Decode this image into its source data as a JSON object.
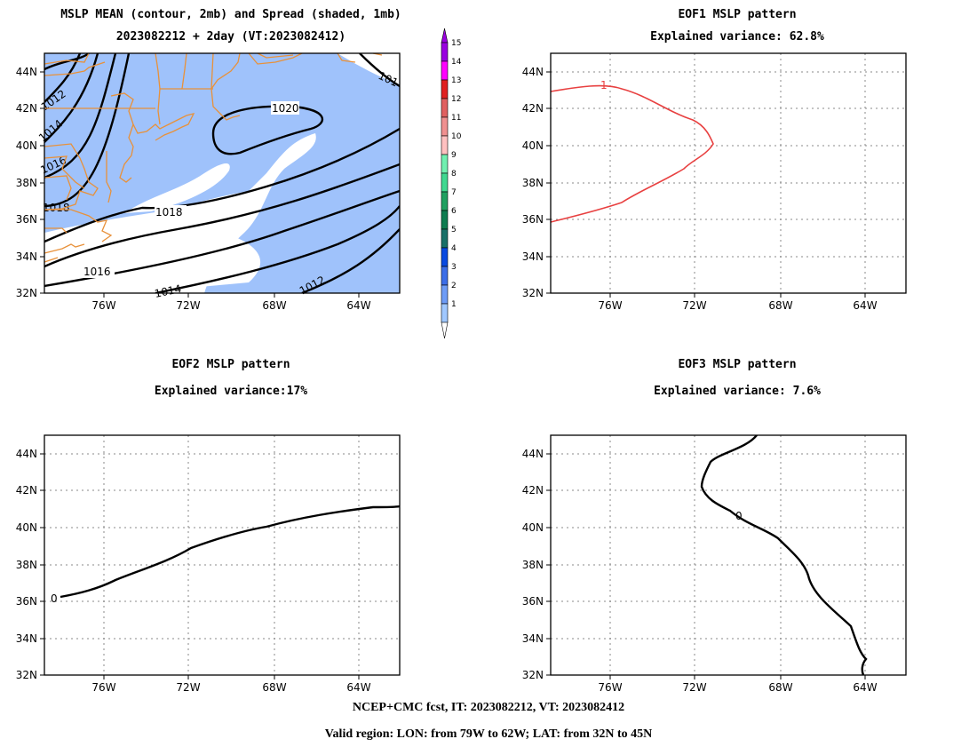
{
  "panels": [
    {
      "key": "p1",
      "title_line1": "MSLP MEAN (contour, 2mb) and Spread (shaded, 1mb)",
      "title_line2": "2023082212 + 2day (VT:2023082412)"
    },
    {
      "key": "p2",
      "title_line1": "EOF1 MSLP pattern",
      "title_line2": "Explained variance: 62.8%"
    },
    {
      "key": "p3",
      "title_line1": "EOF2 MSLP pattern",
      "title_line2": "Explained variance:17%"
    },
    {
      "key": "p4",
      "title_line1": "EOF3 MSLP pattern",
      "title_line2": "Explained variance: 7.6%"
    }
  ],
  "axes": {
    "lat_ticks": [
      "44N",
      "42N",
      "40N",
      "38N",
      "36N",
      "34N",
      "32N"
    ],
    "lon_ticks": [
      "76W",
      "72W",
      "68W",
      "64W"
    ],
    "lon_range": [
      -79,
      -62
    ],
    "lat_range": [
      32,
      45
    ]
  },
  "colorbar": {
    "labels": [
      "1",
      "2",
      "3",
      "4",
      "5",
      "6",
      "7",
      "8",
      "9",
      "10",
      "11",
      "12",
      "13",
      "14",
      "15"
    ],
    "colors": [
      "#ffffff",
      "#a0c8ff",
      "#6e9cf6",
      "#3c6ee8",
      "#0a4ae0",
      "#1a7068",
      "#0f7c50",
      "#20a060",
      "#40d890",
      "#70f0b0",
      "#ffc0c0",
      "#f09090",
      "#e06060",
      "#e02020",
      "#ff00ff",
      "#9a00e0"
    ]
  },
  "contour_labels": {
    "mean": [
      "1020",
      "1018",
      "1016",
      "1014",
      "1012",
      "1012",
      "1014",
      "1016",
      "1018",
      "101"
    ],
    "eof1": [
      "1"
    ],
    "eof2": [
      "0"
    ],
    "eof3": [
      "0"
    ]
  },
  "colors": {
    "coast": "#e8913a",
    "eof1_line": "#e84040",
    "spread": "#9fc2fb",
    "contour": "#000000",
    "grid": "#8a8a8a"
  },
  "footer": {
    "line1": "NCEP+CMC fcst, IT: 2023082212, VT: 2023082412",
    "line2": "Valid region: LON: from 79W to 62W; LAT: from 32N to 45N"
  }
}
